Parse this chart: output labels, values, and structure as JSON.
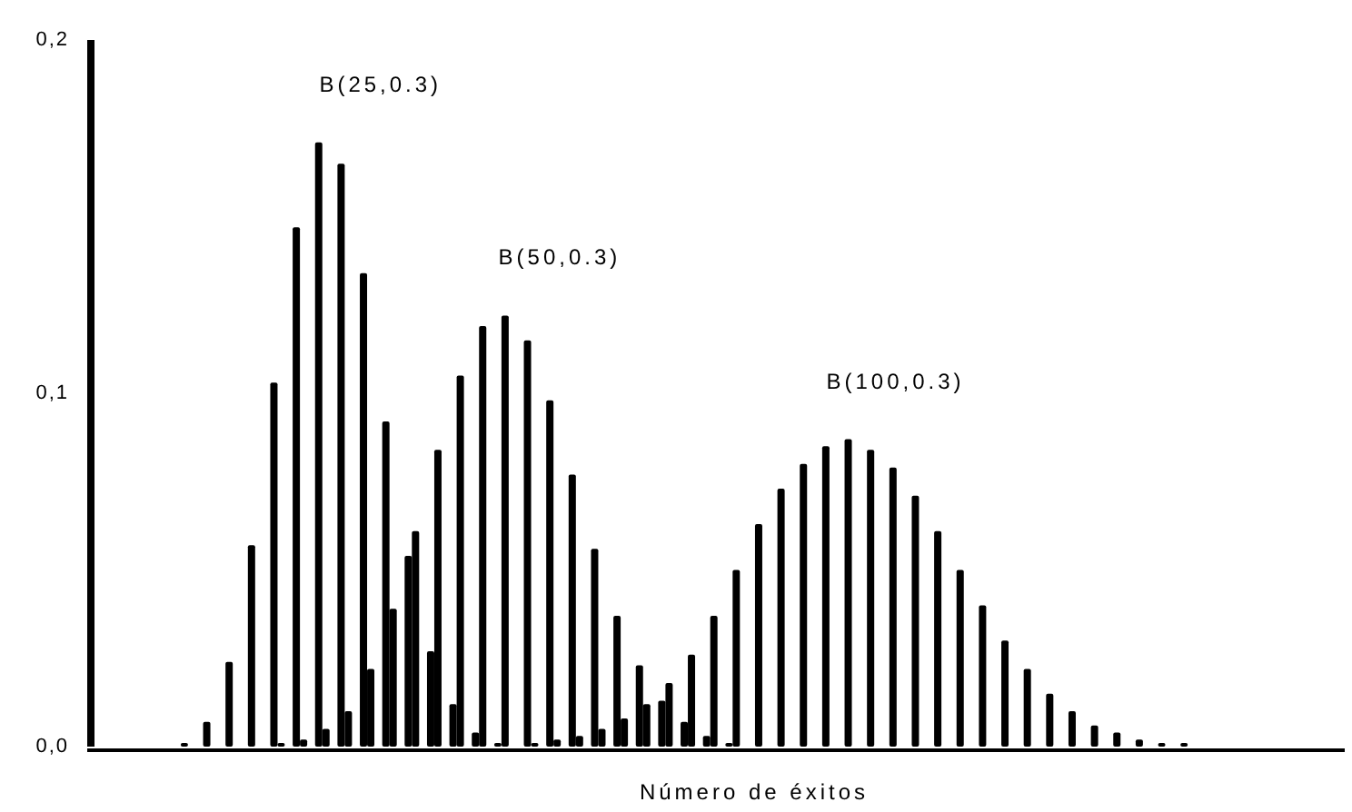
{
  "chart_data": {
    "type": "bar",
    "xlabel": "Número de éxitos",
    "categories": [
      null,
      null,
      null,
      null,
      null,
      null,
      null,
      null,
      null,
      null,
      null,
      null,
      null,
      null,
      null,
      null,
      null,
      null,
      null,
      null,
      null,
      null,
      null,
      null,
      null,
      null,
      null,
      null,
      null,
      null,
      null,
      null,
      null,
      null,
      null,
      null,
      null,
      null,
      null,
      null,
      null,
      null,
      null,
      null,
      null,
      null,
      null,
      null,
      null,
      null,
      null,
      null,
      null,
      null,
      null,
      null
    ],
    "ylim": [
      0,
      0.2
    ],
    "yticks": [
      {
        "value": 0,
        "label": "0,0"
      },
      {
        "value": 0.1,
        "label": "0,1"
      },
      {
        "value": 0.2,
        "label": "0,2"
      }
    ],
    "series": [
      {
        "name": "B(25,0.3)",
        "color": "#000000",
        "values": [
          null,
          null,
          null,
          null,
          0.001,
          0.007,
          0.024,
          0.057,
          0.103,
          0.147,
          0.171,
          0.165,
          0.134,
          0.092,
          0.054,
          0.027,
          0.012,
          0.004,
          0.001,
          null,
          null,
          null,
          null,
          null,
          null,
          null,
          null,
          null,
          null,
          null,
          null,
          null,
          null,
          null,
          null,
          null,
          null,
          null,
          null,
          null,
          null,
          null,
          null,
          null,
          null,
          null,
          null,
          null,
          null,
          null,
          null,
          null,
          null,
          null,
          null,
          null
        ]
      },
      {
        "name": "B(50,0.3)",
        "color": "#000000",
        "values": [
          null,
          null,
          null,
          null,
          null,
          null,
          null,
          null,
          0.001,
          0.002,
          0.005,
          0.01,
          0.022,
          0.039,
          0.061,
          0.084,
          0.105,
          0.119,
          0.122,
          0.115,
          0.098,
          0.077,
          0.056,
          0.037,
          0.023,
          0.013,
          0.007,
          0.003,
          0.001,
          null,
          null,
          null,
          null,
          null,
          null,
          null,
          null,
          null,
          null,
          null,
          null,
          null,
          null,
          null,
          null,
          null,
          null,
          null,
          null,
          null,
          null,
          null,
          null,
          null,
          null,
          null
        ]
      },
      {
        "name": "B(100,0.3)",
        "color": "#000000",
        "values": [
          null,
          null,
          null,
          null,
          null,
          null,
          null,
          null,
          null,
          null,
          null,
          null,
          null,
          null,
          null,
          null,
          null,
          null,
          null,
          0.001,
          0.002,
          0.003,
          0.005,
          0.008,
          0.012,
          0.018,
          0.026,
          0.037,
          0.05,
          0.063,
          0.073,
          0.08,
          0.085,
          0.087,
          0.084,
          0.079,
          0.071,
          0.061,
          0.05,
          0.04,
          0.03,
          0.022,
          0.015,
          0.01,
          0.006,
          0.004,
          0.002,
          0.001,
          0.001,
          null,
          null,
          null,
          null,
          null,
          null,
          null
        ]
      }
    ]
  }
}
